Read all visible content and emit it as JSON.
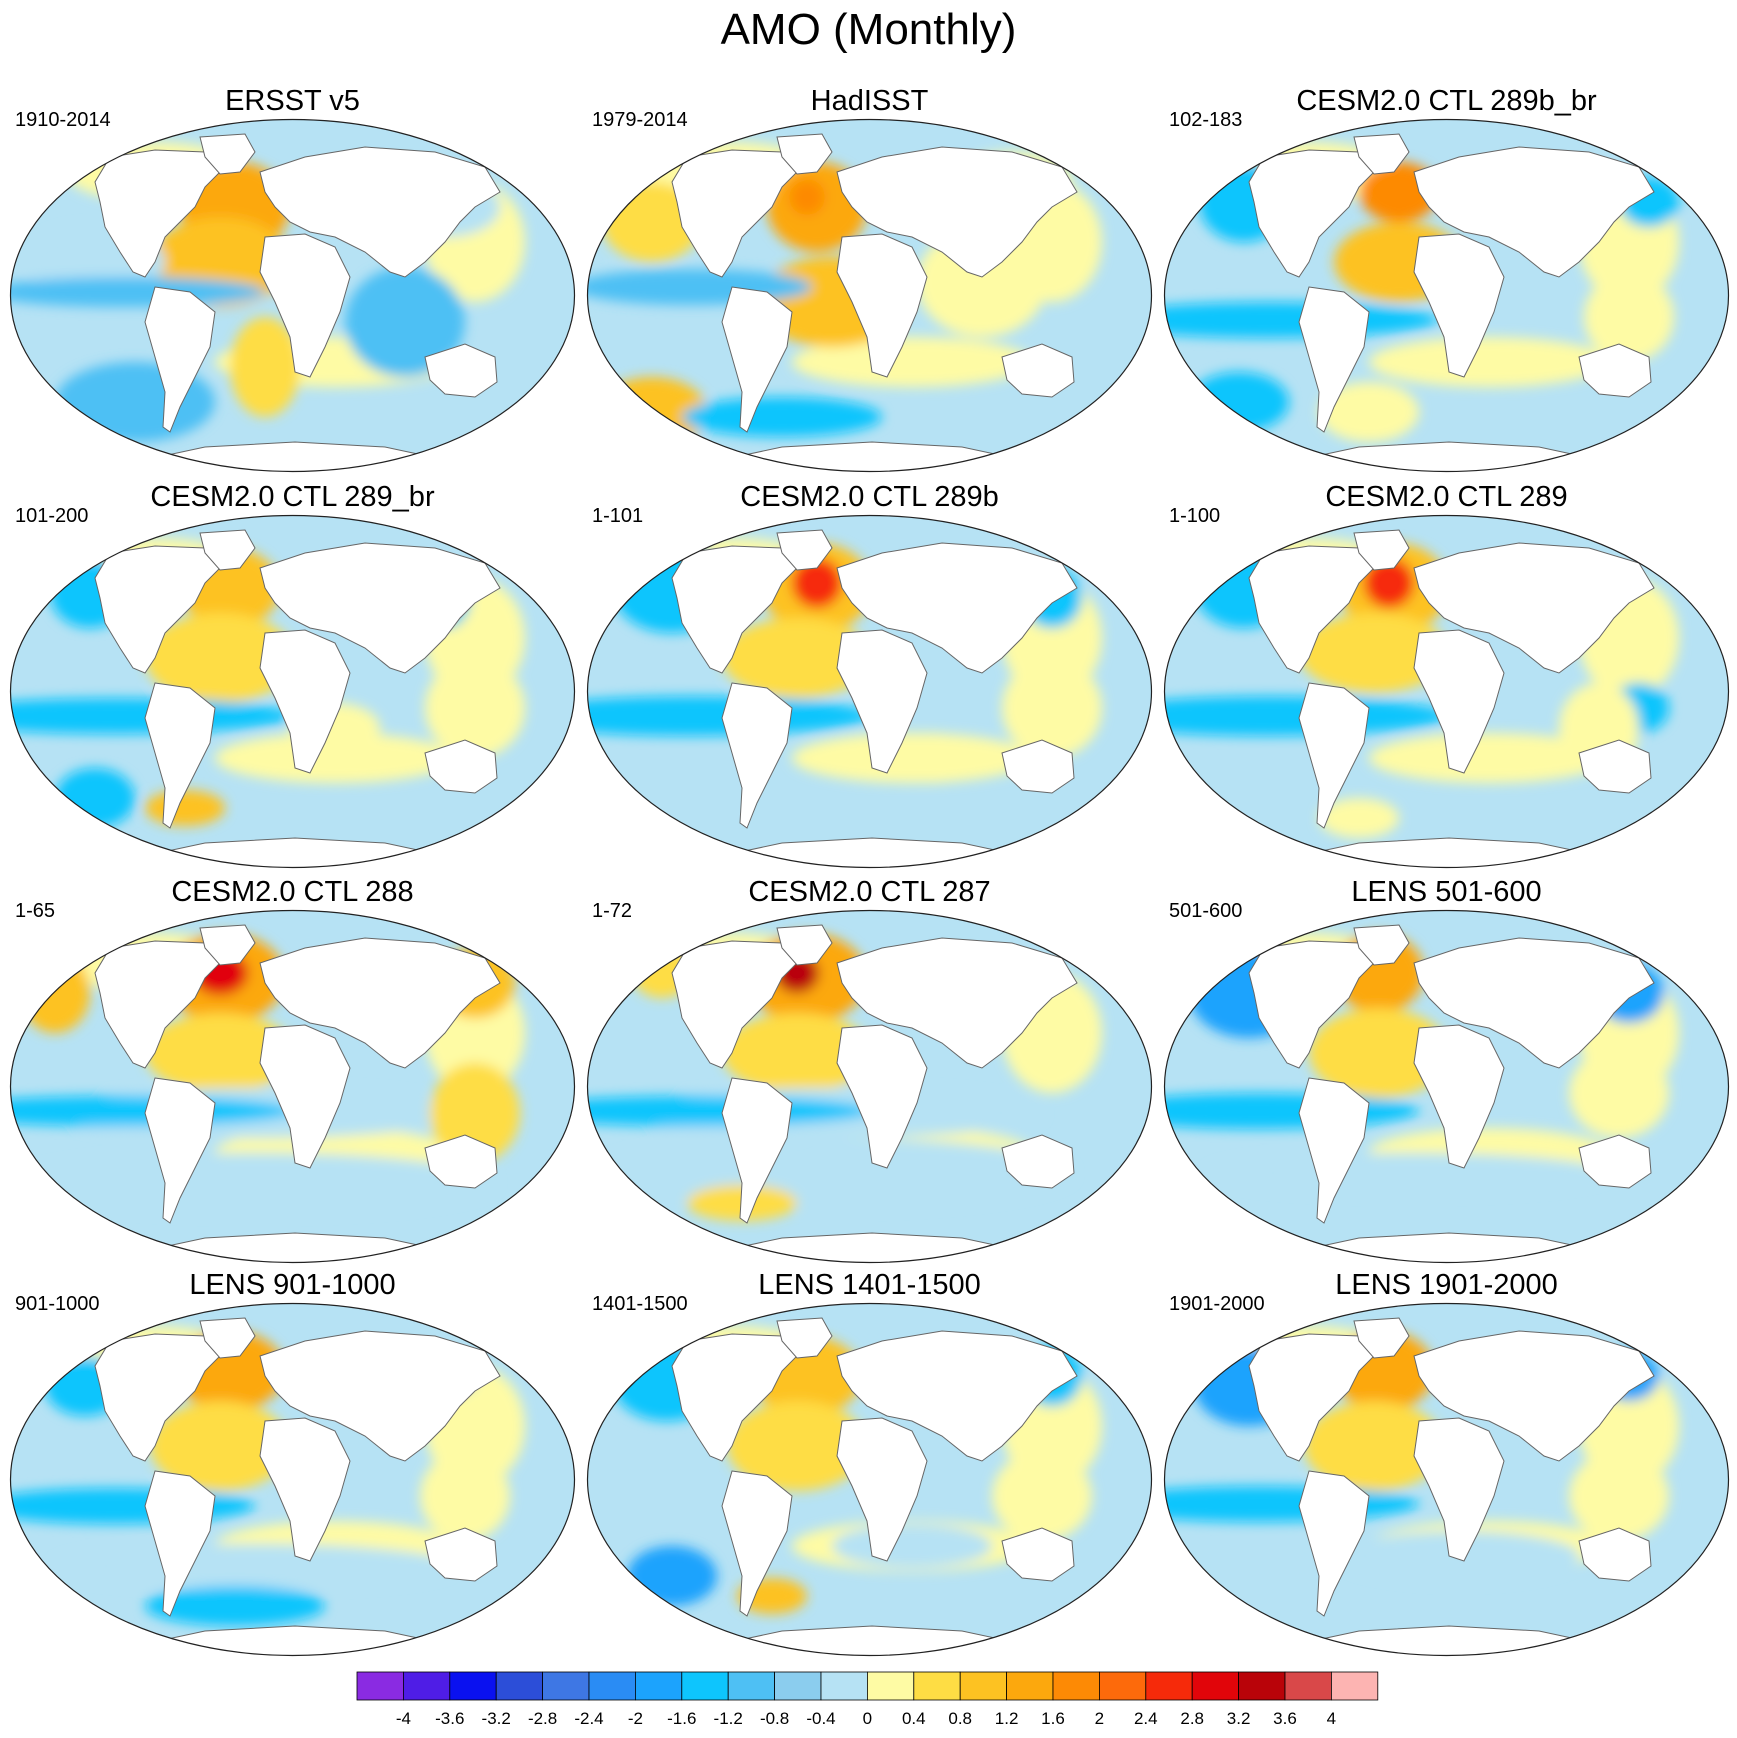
{
  "title": "AMO (Monthly)",
  "panels": [
    {
      "title": "ERSST v5",
      "period": "1910-2014",
      "blobs": [
        [
          "c14",
          230,
          95,
          55,
          45
        ],
        [
          "c13",
          215,
          150,
          70,
          45
        ],
        [
          "c12",
          260,
          255,
          35,
          50
        ],
        [
          "c10",
          90,
          150,
          70,
          35
        ],
        [
          "c8",
          120,
          180,
          140,
          15
        ],
        [
          "c8",
          400,
          210,
          60,
          55
        ],
        [
          "c8",
          130,
          290,
          80,
          40
        ],
        [
          "c10",
          440,
          95,
          55,
          30
        ]
      ]
    },
    {
      "title": "HadISST",
      "period": "1979-2014",
      "blobs": [
        [
          "c14",
          235,
          95,
          50,
          45
        ],
        [
          "c15",
          225,
          85,
          18,
          18
        ],
        [
          "c13",
          250,
          190,
          75,
          45
        ],
        [
          "c12",
          70,
          110,
          50,
          40
        ],
        [
          "c13",
          70,
          300,
          55,
          35
        ],
        [
          "c11",
          400,
          170,
          65,
          55
        ],
        [
          "c11",
          430,
          70,
          60,
          30
        ],
        [
          "c8",
          110,
          175,
          120,
          18
        ],
        [
          "c7",
          200,
          305,
          100,
          20
        ]
      ]
    },
    {
      "title": "CESM2.0 CTL 289b_br",
      "period": "102-183",
      "blobs": [
        [
          "c15",
          240,
          80,
          40,
          30
        ],
        [
          "c13",
          240,
          150,
          65,
          40
        ],
        [
          "c6",
          110,
          208,
          120,
          12
        ],
        [
          "c7",
          110,
          208,
          170,
          18
        ],
        [
          "c7",
          85,
          90,
          45,
          40
        ],
        [
          "c7",
          490,
          90,
          30,
          25
        ],
        [
          "c7",
          80,
          290,
          50,
          30
        ],
        [
          "c11",
          210,
          300,
          50,
          30
        ],
        [
          "c11",
          470,
          205,
          45,
          45
        ]
      ]
    },
    {
      "title": "CESM2.0 CTL 289_br",
      "period": "101-200",
      "blobs": [
        [
          "c13",
          225,
          80,
          50,
          40
        ],
        [
          "c12",
          215,
          150,
          75,
          45
        ],
        [
          "c5",
          110,
          208,
          120,
          12
        ],
        [
          "c7",
          110,
          208,
          180,
          18
        ],
        [
          "c7",
          85,
          85,
          40,
          35
        ],
        [
          "c7",
          440,
          90,
          25,
          30
        ],
        [
          "c7",
          90,
          290,
          40,
          30
        ],
        [
          "c13",
          180,
          300,
          40,
          18
        ],
        [
          "c11",
          470,
          200,
          50,
          50
        ],
        [
          "c11",
          330,
          220,
          45,
          25
        ]
      ]
    },
    {
      "title": "CESM2.0 CTL 289b",
      "period": "1-101",
      "blobs": [
        [
          "c13",
          235,
          80,
          55,
          45
        ],
        [
          "c17",
          235,
          75,
          25,
          25
        ],
        [
          "c12",
          215,
          150,
          75,
          40
        ],
        [
          "c6",
          110,
          208,
          120,
          12
        ],
        [
          "c7",
          110,
          208,
          180,
          20
        ],
        [
          "c7",
          90,
          80,
          60,
          45
        ],
        [
          "c7",
          470,
          90,
          30,
          30
        ],
        [
          "c11",
          470,
          200,
          50,
          50
        ],
        [
          "c11",
          350,
          250,
          50,
          25
        ]
      ]
    },
    {
      "title": "CESM2.0 CTL 289",
      "period": "1-100",
      "blobs": [
        [
          "c13",
          235,
          80,
          55,
          45
        ],
        [
          "c17",
          230,
          75,
          25,
          25
        ],
        [
          "c12",
          215,
          145,
          75,
          40
        ],
        [
          "c6",
          110,
          208,
          120,
          12
        ],
        [
          "c7",
          110,
          208,
          180,
          20
        ],
        [
          "c7",
          85,
          80,
          50,
          40
        ],
        [
          "c7",
          480,
          200,
          30,
          25
        ],
        [
          "c11",
          440,
          220,
          40,
          45
        ],
        [
          "c11",
          200,
          310,
          40,
          20
        ]
      ]
    },
    {
      "title": "CESM2.0 CTL 288",
      "period": "1-65",
      "blobs": [
        [
          "c14",
          220,
          75,
          60,
          45
        ],
        [
          "c18",
          215,
          70,
          28,
          22
        ],
        [
          "c12",
          215,
          150,
          75,
          40
        ],
        [
          "c10",
          250,
          280,
          240,
          30
        ],
        [
          "c10",
          250,
          210,
          210,
          25
        ],
        [
          "c7",
          110,
          208,
          180,
          15
        ],
        [
          "c13",
          50,
          90,
          35,
          40
        ],
        [
          "c13",
          470,
          80,
          40,
          35
        ],
        [
          "c12",
          470,
          210,
          45,
          50
        ]
      ]
    },
    {
      "title": "CESM2.0 CTL 287",
      "period": "1-72",
      "blobs": [
        [
          "c14",
          225,
          75,
          60,
          45
        ],
        [
          "c19",
          215,
          70,
          22,
          20
        ],
        [
          "c12",
          215,
          150,
          75,
          40
        ],
        [
          "c10",
          250,
          270,
          240,
          35
        ],
        [
          "c10",
          250,
          210,
          210,
          25
        ],
        [
          "c7",
          110,
          208,
          180,
          15
        ],
        [
          "c12",
          80,
          70,
          30,
          25
        ],
        [
          "c12",
          160,
          300,
          55,
          18
        ]
      ]
    },
    {
      "title": "LENS 501-600",
      "period": "501-600",
      "blobs": [
        [
          "c14",
          220,
          70,
          45,
          40
        ],
        [
          "c12",
          220,
          150,
          70,
          45
        ],
        [
          "c6",
          90,
          90,
          60,
          45
        ],
        [
          "c6",
          90,
          208,
          90,
          12
        ],
        [
          "c7",
          100,
          208,
          160,
          18
        ],
        [
          "c6",
          470,
          90,
          35,
          30
        ],
        [
          "c11",
          460,
          190,
          50,
          45
        ],
        [
          "c10",
          250,
          270,
          200,
          20
        ]
      ]
    },
    {
      "title": "LENS 901-1000",
      "period": "901-1000",
      "blobs": [
        [
          "c14",
          225,
          75,
          55,
          40
        ],
        [
          "c12",
          215,
          150,
          70,
          45
        ],
        [
          "c6",
          440,
          80,
          30,
          20
        ],
        [
          "c7",
          80,
          90,
          40,
          30
        ],
        [
          "c7",
          110,
          210,
          140,
          18
        ],
        [
          "c11",
          460,
          200,
          45,
          45
        ],
        [
          "c10",
          250,
          270,
          200,
          22
        ],
        [
          "c7",
          230,
          310,
          90,
          20
        ]
      ]
    },
    {
      "title": "LENS 1401-1500",
      "period": "1401-1500",
      "blobs": [
        [
          "c13",
          225,
          80,
          55,
          40
        ],
        [
          "c12",
          215,
          150,
          70,
          45
        ],
        [
          "c7",
          85,
          85,
          55,
          40
        ],
        [
          "c7",
          470,
          80,
          30,
          30
        ],
        [
          "c6",
          90,
          280,
          45,
          30
        ],
        [
          "c13",
          190,
          300,
          35,
          18
        ],
        [
          "c11",
          460,
          200,
          50,
          45
        ],
        [
          "c10",
          330,
          250,
          80,
          22
        ]
      ]
    },
    {
      "title": "LENS 1901-2000",
      "period": "1901-2000",
      "blobs": [
        [
          "c14",
          225,
          75,
          50,
          40
        ],
        [
          "c12",
          215,
          150,
          70,
          45
        ],
        [
          "c6",
          90,
          90,
          55,
          40
        ],
        [
          "c6",
          470,
          80,
          30,
          25
        ],
        [
          "c6",
          100,
          208,
          100,
          12
        ],
        [
          "c7",
          100,
          208,
          160,
          18
        ],
        [
          "c11",
          460,
          200,
          50,
          45
        ],
        [
          "c10",
          300,
          260,
          120,
          25
        ]
      ]
    }
  ],
  "colorbar": {
    "colors": [
      "#8a2be2",
      "#4f1de6",
      "#0a11f0",
      "#2c4ed8",
      "#3e77e4",
      "#2a8cf4",
      "#1ca3fd",
      "#0ec5fd",
      "#4ec0f4",
      "#8bcdee",
      "#b6e2f4",
      "#fefba4",
      "#fedd44",
      "#fdc222",
      "#fca80d",
      "#fd8a05",
      "#fd6a0b",
      "#f62a0a",
      "#e1050a",
      "#b90309",
      "#d94849",
      "#fdb4b2"
    ],
    "labels": [
      "-4",
      "-3.6",
      "-3.2",
      "-2.8",
      "-2.4",
      "-2",
      "-1.6",
      "-1.2",
      "-0.8",
      "-0.4",
      "0",
      "0.4",
      "0.8",
      "1.2",
      "1.6",
      "2",
      "2.4",
      "2.8",
      "3.2",
      "3.6",
      "4"
    ]
  }
}
